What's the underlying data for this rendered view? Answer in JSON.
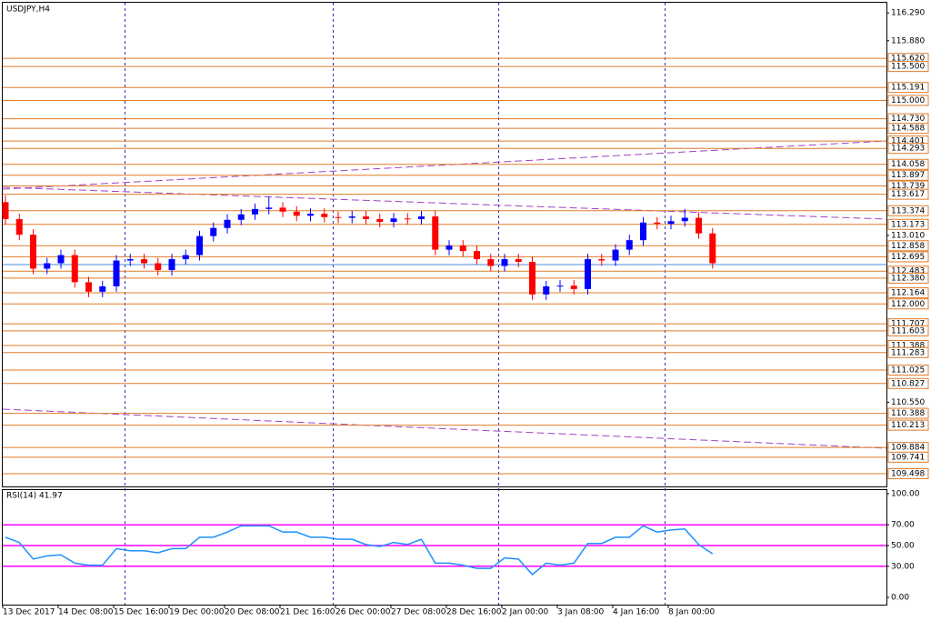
{
  "chart_data": {
    "type": "candlestick",
    "title": "USDJPY,H4",
    "categories": [
      "13 Dec 2017",
      null,
      null,
      null,
      "14 Dec 08:00",
      null,
      null,
      null,
      "15 Dec 16:00",
      null,
      null,
      null,
      "19 Dec 00:00",
      null,
      null,
      null,
      "20 Dec 08:00",
      null,
      null,
      null,
      "21 Dec 16:00",
      null,
      null,
      null,
      "26 Dec 00:00",
      null,
      null,
      null,
      "27 Dec 08:00",
      null,
      null,
      null,
      "28 Dec 16:00",
      null,
      null,
      null,
      "2 Jan 00:00",
      null,
      null,
      null,
      "3 Jan 08:00",
      null,
      null,
      null,
      "4 Jan 16:00",
      null,
      null,
      null,
      "8 Jan 00:00",
      null,
      null,
      null
    ],
    "open": [
      113.5,
      113.25,
      113.02,
      112.52,
      112.6,
      112.72,
      112.32,
      112.18,
      112.26,
      112.64,
      112.66,
      112.6,
      112.5,
      112.66,
      112.72,
      113.0,
      113.12,
      113.24,
      113.32,
      113.4,
      113.42,
      113.36,
      113.3,
      113.33,
      113.28,
      113.27,
      113.29,
      113.25,
      113.21,
      113.26,
      113.25,
      113.29,
      112.8,
      112.86,
      112.78,
      112.66,
      112.56,
      112.66,
      112.62,
      112.14,
      112.26,
      112.27,
      112.22,
      112.66,
      112.64,
      112.8,
      112.94,
      113.2,
      113.18,
      113.22,
      113.27,
      113.04
    ],
    "high": [
      113.6,
      113.33,
      113.1,
      112.68,
      112.8,
      112.8,
      112.4,
      112.34,
      112.72,
      112.74,
      112.74,
      112.68,
      112.74,
      112.8,
      113.08,
      113.2,
      113.32,
      113.4,
      113.48,
      113.58,
      113.5,
      113.44,
      113.41,
      113.41,
      113.36,
      113.37,
      113.37,
      113.33,
      113.34,
      113.34,
      113.37,
      113.37,
      112.94,
      112.94,
      112.86,
      112.74,
      112.74,
      112.74,
      112.7,
      112.34,
      112.35,
      112.35,
      112.74,
      112.74,
      112.88,
      113.02,
      113.28,
      113.28,
      113.3,
      113.4,
      113.35,
      113.12
    ],
    "low": [
      113.17,
      112.94,
      112.44,
      112.44,
      112.52,
      112.24,
      112.1,
      112.1,
      112.18,
      112.56,
      112.52,
      112.42,
      112.42,
      112.58,
      112.64,
      112.92,
      113.04,
      113.16,
      113.24,
      113.32,
      113.28,
      113.22,
      113.22,
      113.2,
      113.19,
      113.19,
      113.17,
      113.13,
      113.13,
      113.17,
      113.17,
      112.72,
      112.72,
      112.7,
      112.58,
      112.48,
      112.48,
      112.54,
      112.06,
      112.06,
      112.18,
      112.14,
      112.14,
      112.56,
      112.56,
      112.72,
      112.86,
      113.1,
      113.1,
      113.14,
      112.96,
      112.52
    ],
    "close": [
      113.25,
      113.02,
      112.52,
      112.6,
      112.72,
      112.32,
      112.18,
      112.26,
      112.64,
      112.66,
      112.6,
      112.5,
      112.66,
      112.72,
      113.0,
      113.12,
      113.24,
      113.32,
      113.4,
      113.42,
      113.36,
      113.3,
      113.33,
      113.28,
      113.27,
      113.29,
      113.25,
      113.21,
      113.26,
      113.25,
      113.29,
      112.8,
      112.86,
      112.78,
      112.66,
      112.56,
      112.66,
      112.62,
      112.14,
      112.26,
      112.27,
      112.22,
      112.66,
      112.64,
      112.8,
      112.94,
      113.2,
      113.18,
      113.22,
      113.27,
      113.04,
      112.6
    ],
    "colors": {
      "up": "#0000ff",
      "down": "#ff0000"
    },
    "ylim": [
      109.31,
      116.44
    ],
    "yticks": [
      {
        "value": 116.29,
        "label": "116.290"
      },
      {
        "value": 115.88,
        "label": "115.880"
      },
      {
        "value": 113.01,
        "label": "113.010"
      },
      {
        "value": 110.55,
        "label": "110.550"
      }
    ],
    "levels": [
      {
        "value": 115.62,
        "label": "115.620"
      },
      {
        "value": 115.5,
        "label": "115.500"
      },
      {
        "value": 115.191,
        "label": "115.191"
      },
      {
        "value": 115.0,
        "label": "115.000"
      },
      {
        "value": 114.73,
        "label": "114.730"
      },
      {
        "value": 114.588,
        "label": "114.588"
      },
      {
        "value": 114.401,
        "label": "114.401"
      },
      {
        "value": 114.293,
        "label": "114.293"
      },
      {
        "value": 114.058,
        "label": "114.058"
      },
      {
        "value": 113.897,
        "label": "113.897"
      },
      {
        "value": 113.739,
        "label": "113.739"
      },
      {
        "value": 113.617,
        "label": "113.617"
      },
      {
        "value": 113.374,
        "label": "113.374"
      },
      {
        "value": 113.173,
        "label": "113.173"
      },
      {
        "value": 112.858,
        "label": "112.858"
      },
      {
        "value": 112.695,
        "label": "112.695"
      },
      {
        "value": 112.483,
        "label": "112.483"
      },
      {
        "value": 112.38,
        "label": "112.380"
      },
      {
        "value": 112.164,
        "label": "112.164"
      },
      {
        "value": 112.0,
        "label": "112.000"
      },
      {
        "value": 111.707,
        "label": "111.707"
      },
      {
        "value": 111.603,
        "label": "111.603"
      },
      {
        "value": 111.388,
        "label": "111.388"
      },
      {
        "value": 111.283,
        "label": "111.283"
      },
      {
        "value": 111.025,
        "label": "111.025"
      },
      {
        "value": 110.827,
        "label": "110.827"
      },
      {
        "value": 110.388,
        "label": "110.388"
      },
      {
        "value": 110.213,
        "label": "110.213"
      },
      {
        "value": 109.884,
        "label": "109.884"
      },
      {
        "value": 109.741,
        "label": "109.741"
      },
      {
        "value": 109.498,
        "label": "109.498"
      }
    ],
    "level_color": "#e07b28",
    "bid_line": 112.58,
    "bid_color": "#4a8cd8",
    "rsi": {
      "label": "RSI(14) 41.97",
      "values": [
        58,
        53,
        37,
        40,
        41,
        33,
        31,
        31,
        47,
        45,
        45,
        43,
        47,
        47,
        58,
        58,
        63,
        69,
        69,
        69,
        63,
        63,
        58,
        58,
        56,
        56,
        51,
        49,
        53,
        51,
        56,
        33,
        33,
        31,
        28,
        28,
        38,
        37,
        22,
        33,
        31,
        33,
        52,
        52,
        58,
        58,
        69,
        63,
        65,
        66,
        51,
        41.97
      ],
      "color": "#1e90ff",
      "ylim": [
        -7,
        103.5
      ],
      "yticks": [
        {
          "value": 100,
          "label": "100.00"
        },
        {
          "value": 70,
          "label": "70.00"
        },
        {
          "value": 50,
          "label": "50.00"
        },
        {
          "value": 30,
          "label": "30.00"
        },
        {
          "value": 0,
          "label": "0.00"
        }
      ],
      "levels": [
        70,
        50,
        30
      ],
      "level_color": "#ff00ff"
    }
  }
}
